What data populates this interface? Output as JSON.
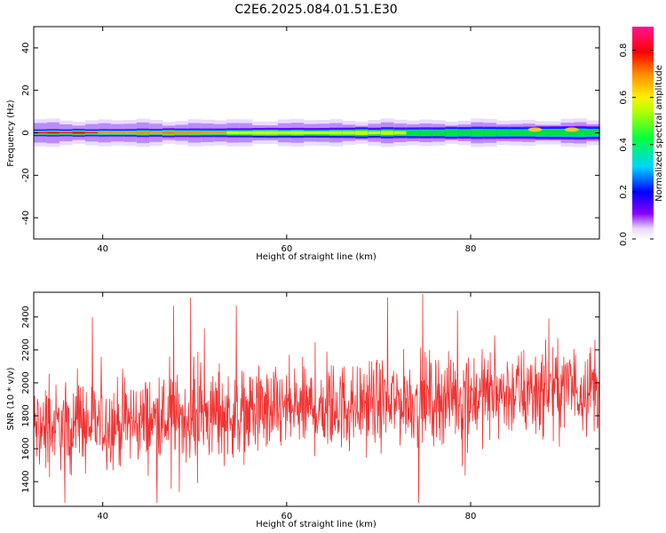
{
  "figure": {
    "title": "C2E6.2025.084.01.51.E30"
  },
  "chart_data": [
    {
      "type": "heatmap",
      "xlabel": "Height of straight line (km)",
      "ylabel": "Frequency (Hz)",
      "xlim": [
        32.5,
        94
      ],
      "ylim": [
        -50,
        50
      ],
      "x_ticks": [
        40,
        60,
        80
      ],
      "y_ticks": [
        -40,
        -20,
        0,
        20,
        40
      ],
      "x_tick_labels": [
        "40",
        "60",
        "80"
      ],
      "y_tick_labels": [
        "-40",
        "-20",
        "0",
        "20",
        "40"
      ],
      "grid": false,
      "colorbar": {
        "label": "Normalized spectral amplitude",
        "range": [
          0,
          0.9
        ],
        "ticks": [
          "0.0",
          "0.2",
          "0.4",
          "0.6",
          "0.8"
        ],
        "colormap": "rainbow (white-violet-blue-cyan-green-yellow-red-magenta)"
      },
      "band": {
        "center_frequency_hz": 0,
        "halfwidth_start_hz": 1.5,
        "halfwidth_end_hz": 3,
        "outer_halfwidth_hz": 6,
        "peak_amplitude_start": 0.85,
        "peak_amplitude_end": 0.55,
        "hotspots": [
          {
            "x": 87,
            "frequency": 1.5,
            "amplitude": 0.7
          },
          {
            "x": 91,
            "frequency": 1.5,
            "amplitude": 0.8
          }
        ]
      }
    },
    {
      "type": "line",
      "xlabel": "Height of straight line (km)",
      "ylabel": "SNR (10 * v/v)",
      "xlim": [
        32.5,
        94
      ],
      "ylim": [
        1250,
        2550
      ],
      "x_ticks": [
        40,
        60,
        80
      ],
      "y_ticks": [
        1400,
        1600,
        1800,
        2000,
        2200,
        2400
      ],
      "x_tick_labels": [
        "40",
        "60",
        "80"
      ],
      "y_tick_labels": [
        "1400",
        "1600",
        "1800",
        "2000",
        "2200",
        "2400"
      ],
      "grid": false,
      "series": [
        {
          "color": "#f03434",
          "n_points": 1400,
          "trend_start": 1720,
          "trend_end": 1980,
          "noise_amplitude": 130,
          "min_value": 1270,
          "max_value": 2540
        }
      ]
    }
  ],
  "colors": {
    "line": "#f03434",
    "axes": "#000000",
    "background": "#ffffff"
  }
}
